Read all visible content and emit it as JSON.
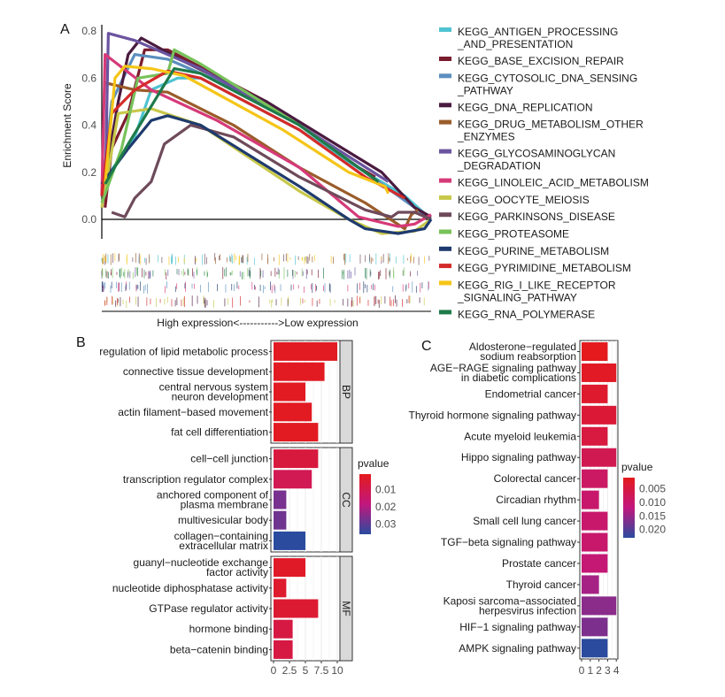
{
  "panels": {
    "a": "A",
    "b": "B",
    "c": "C"
  },
  "chart_data": [
    {
      "type": "line",
      "panel": "A",
      "ylabel": "Enrichment Score",
      "xlabel": "High expression<----------->Low expression",
      "ylim": [
        -0.1,
        0.8
      ],
      "yticks": [
        "0.0",
        "0.2",
        "0.4",
        "0.6",
        "0.8"
      ],
      "grid": false,
      "legend_position": "right",
      "series": [
        {
          "name": [
            "KEGG_ANTIGEN_PROCESSING",
            "_AND_PRESENTATION"
          ],
          "color": "#4fc3d1",
          "points": [
            [
              0,
              0.15
            ],
            [
              0.1,
              0.35
            ],
            [
              0.15,
              0.55
            ],
            [
              0.23,
              0.6
            ],
            [
              0.3,
              0.6
            ],
            [
              0.6,
              0.38
            ],
            [
              0.8,
              0.2
            ],
            [
              0.92,
              0.1
            ],
            [
              1,
              0.0
            ]
          ]
        },
        {
          "name": [
            "KEGG_BASE_EXCISION_REPAIR"
          ],
          "color": "#7b1c2e",
          "points": [
            [
              0.01,
              0.05
            ],
            [
              0.03,
              0.3
            ],
            [
              0.08,
              0.45
            ],
            [
              0.13,
              0.72
            ],
            [
              0.2,
              0.72
            ],
            [
              0.5,
              0.5
            ],
            [
              0.78,
              0.22
            ],
            [
              0.83,
              0.18
            ]
          ]
        },
        {
          "name": [
            "KEGG_CYTOSOLIC_DNA_SENSING",
            "_PATHWAY"
          ],
          "color": "#5b8fbf",
          "points": [
            [
              0,
              0.1
            ],
            [
              0.03,
              0.5
            ],
            [
              0.1,
              0.7
            ],
            [
              0.2,
              0.68
            ],
            [
              0.5,
              0.5
            ],
            [
              0.8,
              0.2
            ],
            [
              1,
              0.0
            ]
          ]
        },
        {
          "name": [
            "KEGG_DNA_REPLICATION"
          ],
          "color": "#4a1a3f",
          "points": [
            [
              0,
              0.1
            ],
            [
              0.05,
              0.5
            ],
            [
              0.08,
              0.7
            ],
            [
              0.12,
              0.77
            ],
            [
              0.25,
              0.67
            ],
            [
              0.5,
              0.5
            ],
            [
              0.85,
              0.2
            ],
            [
              0.95,
              0.05
            ],
            [
              1,
              0.01
            ]
          ]
        },
        {
          "name": [
            "KEGG_DRUG_METABOLISM_OTHER",
            "_ENZYMES"
          ],
          "color": "#9a5c2a",
          "points": [
            [
              0.01,
              0.58
            ],
            [
              0.1,
              0.55
            ],
            [
              0.2,
              0.54
            ],
            [
              0.4,
              0.4
            ],
            [
              0.6,
              0.22
            ],
            [
              0.8,
              0.07
            ],
            [
              0.92,
              -0.04
            ],
            [
              0.94,
              0.02
            ],
            [
              0.96,
              0.04
            ]
          ]
        },
        {
          "name": [
            "KEGG_GLYCOSAMINOGLYCAN",
            "_DEGRADATION"
          ],
          "color": "#6b54a0",
          "points": [
            [
              0.01,
              0.1
            ],
            [
              0.02,
              0.79
            ],
            [
              0.1,
              0.76
            ],
            [
              0.3,
              0.64
            ],
            [
              0.6,
              0.4
            ],
            [
              0.87,
              0.16
            ]
          ]
        },
        {
          "name": [
            "KEGG_LINOLEIC_ACID_METABOLISM"
          ],
          "color": "#d63a78",
          "points": [
            [
              0,
              0.1
            ],
            [
              0.01,
              0.7
            ],
            [
              0.15,
              0.55
            ],
            [
              0.35,
              0.42
            ],
            [
              0.6,
              0.22
            ],
            [
              0.78,
              0.01
            ],
            [
              0.9,
              -0.03
            ],
            [
              0.95,
              -0.02
            ],
            [
              1,
              0.02
            ]
          ]
        },
        {
          "name": [
            "KEGG_OOCYTE_MEIOSIS"
          ],
          "color": "#c8c84a",
          "points": [
            [
              0,
              0.05
            ],
            [
              0.05,
              0.45
            ],
            [
              0.15,
              0.47
            ],
            [
              0.3,
              0.4
            ],
            [
              0.6,
              0.12
            ],
            [
              0.75,
              0.0
            ],
            [
              0.85,
              -0.06
            ],
            [
              0.95,
              -0.05
            ],
            [
              1,
              0.0
            ]
          ]
        },
        {
          "name": [
            "KEGG_PARKINSONS_DISEASE"
          ],
          "color": "#6e4a5a",
          "points": [
            [
              0.03,
              0.03
            ],
            [
              0.07,
              0.01
            ],
            [
              0.1,
              0.09
            ],
            [
              0.15,
              0.16
            ],
            [
              0.19,
              0.32
            ],
            [
              0.25,
              0.38
            ],
            [
              0.27,
              0.4
            ],
            [
              0.4,
              0.35
            ],
            [
              0.6,
              0.18
            ],
            [
              0.8,
              0.04
            ],
            [
              0.88,
              0.01
            ],
            [
              0.9,
              0.03
            ],
            [
              0.95,
              0.03
            ],
            [
              1,
              0.0
            ]
          ]
        },
        {
          "name": [
            "KEGG_PROTEASOME"
          ],
          "color": "#78c25a",
          "points": [
            [
              0,
              0.07
            ],
            [
              0.06,
              0.3
            ],
            [
              0.11,
              0.6
            ],
            [
              0.2,
              0.62
            ],
            [
              0.22,
              0.72
            ],
            [
              0.3,
              0.66
            ],
            [
              0.6,
              0.4
            ],
            [
              0.75,
              0.25
            ]
          ]
        },
        {
          "name": [
            "KEGG_PURINE_METABOLISM"
          ],
          "color": "#1e3a6e",
          "points": [
            [
              0,
              0.15
            ],
            [
              0.08,
              0.3
            ],
            [
              0.15,
              0.42
            ],
            [
              0.2,
              0.44
            ],
            [
              0.3,
              0.4
            ],
            [
              0.6,
              0.14
            ],
            [
              0.75,
              0.0
            ],
            [
              0.8,
              -0.04
            ],
            [
              0.9,
              -0.06
            ],
            [
              0.98,
              -0.04
            ],
            [
              1,
              0.0
            ]
          ]
        },
        {
          "name": [
            "KEGG_PYRIMIDINE_METABOLISM"
          ],
          "color": "#d42a2a",
          "points": [
            [
              0,
              0.1
            ],
            [
              0.03,
              0.45
            ],
            [
              0.1,
              0.55
            ],
            [
              0.2,
              0.63
            ],
            [
              0.3,
              0.6
            ],
            [
              0.6,
              0.38
            ],
            [
              0.8,
              0.18
            ],
            [
              0.92,
              0.09
            ]
          ]
        },
        {
          "name": [
            "KEGG_RIG_I_LIKE_RECEPTOR",
            "_SIGNALING_PATHWAY"
          ],
          "color": "#f5c518",
          "points": [
            [
              0.01,
              0.15
            ],
            [
              0.04,
              0.6
            ],
            [
              0.07,
              0.65
            ],
            [
              0.15,
              0.64
            ],
            [
              0.25,
              0.61
            ],
            [
              0.55,
              0.38
            ],
            [
              0.75,
              0.2
            ],
            [
              0.86,
              0.14
            ],
            [
              0.87,
              0.11
            ]
          ]
        },
        {
          "name": [
            "KEGG_RNA_POLYMERASE"
          ],
          "color": "#1e7a4a",
          "points": [
            [
              0.01,
              0.15
            ],
            [
              0.08,
              0.32
            ],
            [
              0.15,
              0.48
            ],
            [
              0.22,
              0.64
            ],
            [
              0.3,
              0.62
            ],
            [
              0.6,
              0.4
            ],
            [
              0.84,
              0.16
            ]
          ]
        }
      ]
    },
    {
      "type": "bar",
      "panel": "B",
      "orientation": "horizontal",
      "xticks": [
        "0",
        "2.5",
        "5",
        "7.5",
        "10"
      ],
      "xlim": [
        0,
        10.5
      ],
      "color_legend": {
        "title": "pvalue",
        "ticks": [
          "0.01",
          "0.02",
          "0.03"
        ],
        "range": [
          0.001,
          0.036
        ],
        "low_color": "#e41a1c",
        "mid_color": "#c2187e",
        "high_color": "#2a4b9e"
      },
      "facets": [
        {
          "name": "BP",
          "items": [
            {
              "label": [
                "regulation of lipid metabolic process"
              ],
              "value": 10,
              "pvalue": 0.002
            },
            {
              "label": [
                "connective tissue development"
              ],
              "value": 8,
              "pvalue": 0.002
            },
            {
              "label": [
                "central nervous system",
                "neuron development"
              ],
              "value": 5,
              "pvalue": 0.002
            },
            {
              "label": [
                "actin filament−based movement"
              ],
              "value": 6,
              "pvalue": 0.002
            },
            {
              "label": [
                "fat cell differentiation"
              ],
              "value": 7,
              "pvalue": 0.002
            }
          ]
        },
        {
          "name": "CC",
          "items": [
            {
              "label": [
                "cell−cell junction"
              ],
              "value": 7,
              "pvalue": 0.007
            },
            {
              "label": [
                "transcription regulator complex"
              ],
              "value": 6,
              "pvalue": 0.011
            },
            {
              "label": [
                "anchored component of",
                "plasma membrane"
              ],
              "value": 2,
              "pvalue": 0.027
            },
            {
              "label": [
                "multivesicular body"
              ],
              "value": 2,
              "pvalue": 0.028
            },
            {
              "label": [
                "collagen−containing",
                "extracellular matrix"
              ],
              "value": 5,
              "pvalue": 0.036
            }
          ]
        },
        {
          "name": "MF",
          "items": [
            {
              "label": [
                "guanyl−nucleotide exchange",
                "factor activity"
              ],
              "value": 5,
              "pvalue": 0.003
            },
            {
              "label": [
                "nucleotide diphosphatase activity"
              ],
              "value": 2,
              "pvalue": 0.004
            },
            {
              "label": [
                "GTPase regulator activity"
              ],
              "value": 7,
              "pvalue": 0.005
            },
            {
              "label": [
                "hormone binding"
              ],
              "value": 3,
              "pvalue": 0.008
            },
            {
              "label": [
                "beta−catenin binding"
              ],
              "value": 3,
              "pvalue": 0.008
            }
          ]
        }
      ]
    },
    {
      "type": "bar",
      "panel": "C",
      "orientation": "horizontal",
      "xticks": [
        "0",
        "1",
        "2",
        "3",
        "4"
      ],
      "xlim": [
        0,
        4.1
      ],
      "color_legend": {
        "title": "pvalue",
        "ticks": [
          "0.005",
          "0.010",
          "0.015",
          "0.020"
        ],
        "range": [
          0.001,
          0.023
        ],
        "low_color": "#e41a1c",
        "mid_color": "#c2187e",
        "high_color": "#2a4b9e"
      },
      "items": [
        {
          "label": [
            "Aldosterone−regulated",
            "sodium reabsorption"
          ],
          "value": 3,
          "pvalue": 0.001
        },
        {
          "label": [
            "AGE−RAGE signaling pathway",
            "in diabetic complications"
          ],
          "value": 4,
          "pvalue": 0.002
        },
        {
          "label": [
            "Endometrial cancer"
          ],
          "value": 3,
          "pvalue": 0.003
        },
        {
          "label": [
            "Thyroid hormone signaling pathway"
          ],
          "value": 4,
          "pvalue": 0.004
        },
        {
          "label": [
            "Acute myeloid leukemia"
          ],
          "value": 3,
          "pvalue": 0.005
        },
        {
          "label": [
            "Hippo signaling pathway"
          ],
          "value": 4,
          "pvalue": 0.007
        },
        {
          "label": [
            "Colorectal cancer"
          ],
          "value": 3,
          "pvalue": 0.009
        },
        {
          "label": [
            "Circadian rhythm"
          ],
          "value": 2,
          "pvalue": 0.01
        },
        {
          "label": [
            "Small cell lung cancer"
          ],
          "value": 3,
          "pvalue": 0.01
        },
        {
          "label": [
            "TGF−beta signaling pathway"
          ],
          "value": 3,
          "pvalue": 0.01
        },
        {
          "label": [
            "Prostate cancer"
          ],
          "value": 3,
          "pvalue": 0.011
        },
        {
          "label": [
            "Thyroid cancer"
          ],
          "value": 2,
          "pvalue": 0.014
        },
        {
          "label": [
            "Kaposi sarcoma−associated",
            "herpesvirus infection"
          ],
          "value": 4,
          "pvalue": 0.016
        },
        {
          "label": [
            "HIF−1 signaling pathway"
          ],
          "value": 3,
          "pvalue": 0.017
        },
        {
          "label": [
            "AMPK signaling pathway"
          ],
          "value": 3,
          "pvalue": 0.023
        }
      ]
    }
  ]
}
